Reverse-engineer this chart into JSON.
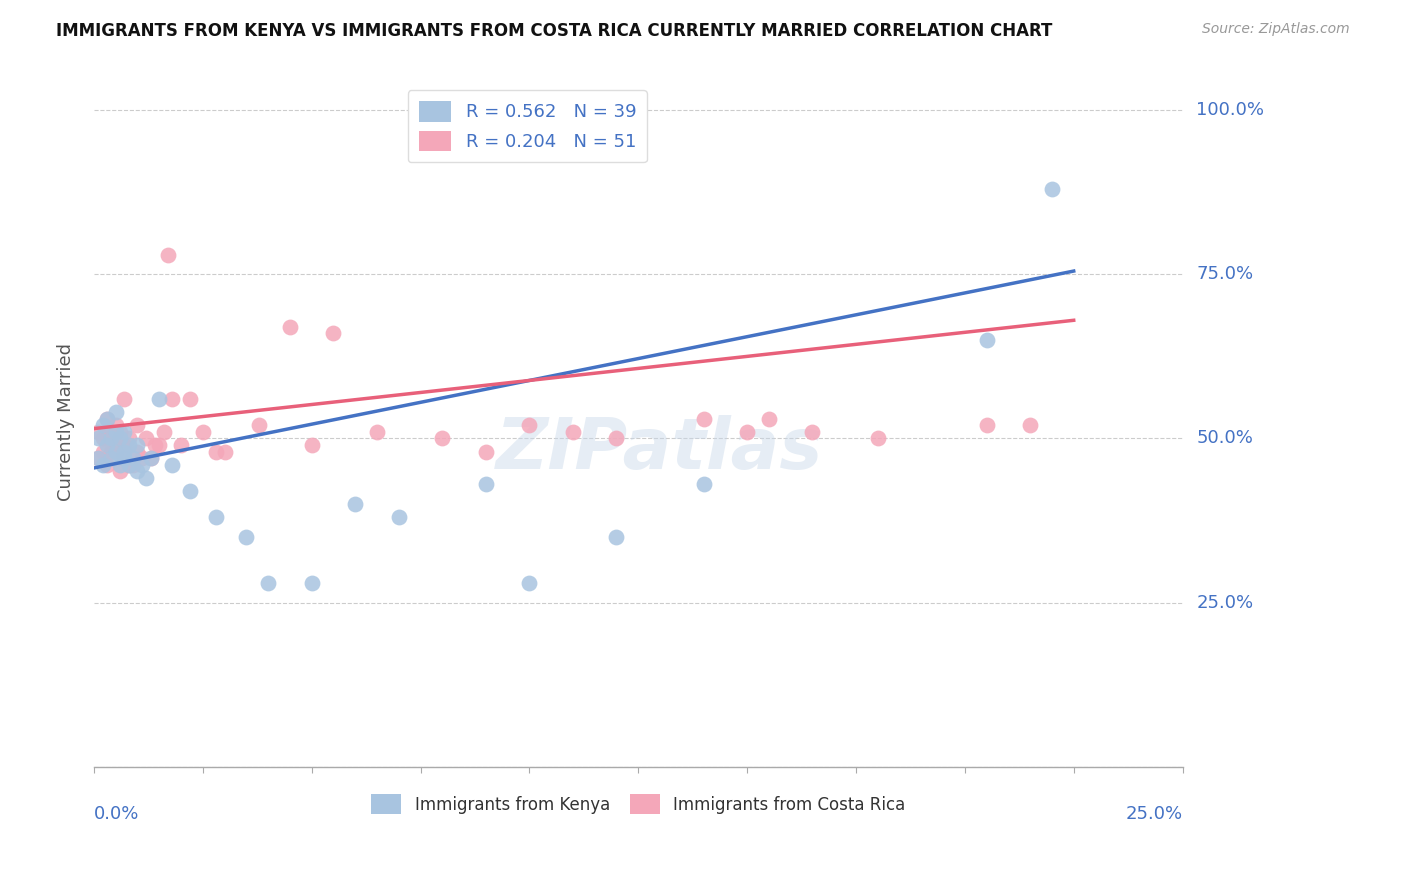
{
  "title": "IMMIGRANTS FROM KENYA VS IMMIGRANTS FROM COSTA RICA CURRENTLY MARRIED CORRELATION CHART",
  "source": "Source: ZipAtlas.com",
  "ylabel": "Currently Married",
  "xmin": 0.0,
  "xmax": 0.25,
  "ymin": 0.0,
  "ymax": 1.05,
  "color_kenya": "#a8c4e0",
  "color_costarica": "#f4a7b9",
  "color_kenya_line": "#4472c4",
  "color_costarica_line": "#e8607a",
  "color_axis": "#4472c4",
  "watermark": "ZIPatlas",
  "background_color": "#ffffff",
  "kenya_x": [
    0.001,
    0.001,
    0.002,
    0.002,
    0.003,
    0.003,
    0.004,
    0.004,
    0.005,
    0.005,
    0.005,
    0.006,
    0.006,
    0.007,
    0.007,
    0.007,
    0.008,
    0.008,
    0.009,
    0.01,
    0.01,
    0.011,
    0.012,
    0.013,
    0.015,
    0.018,
    0.022,
    0.028,
    0.035,
    0.04,
    0.05,
    0.06,
    0.07,
    0.09,
    0.1,
    0.12,
    0.14,
    0.205,
    0.22
  ],
  "kenya_y": [
    0.47,
    0.5,
    0.46,
    0.52,
    0.49,
    0.53,
    0.5,
    0.47,
    0.48,
    0.51,
    0.54,
    0.46,
    0.5,
    0.47,
    0.51,
    0.48,
    0.46,
    0.49,
    0.47,
    0.45,
    0.49,
    0.46,
    0.44,
    0.47,
    0.56,
    0.46,
    0.42,
    0.38,
    0.35,
    0.28,
    0.28,
    0.4,
    0.38,
    0.43,
    0.28,
    0.35,
    0.43,
    0.65,
    0.88
  ],
  "costarica_x": [
    0.001,
    0.001,
    0.002,
    0.002,
    0.003,
    0.003,
    0.003,
    0.004,
    0.004,
    0.005,
    0.005,
    0.006,
    0.006,
    0.007,
    0.007,
    0.007,
    0.008,
    0.008,
    0.009,
    0.01,
    0.01,
    0.011,
    0.012,
    0.013,
    0.014,
    0.015,
    0.016,
    0.017,
    0.018,
    0.02,
    0.022,
    0.025,
    0.028,
    0.03,
    0.038,
    0.045,
    0.05,
    0.055,
    0.065,
    0.08,
    0.09,
    0.1,
    0.11,
    0.12,
    0.14,
    0.15,
    0.155,
    0.165,
    0.18,
    0.205,
    0.215
  ],
  "costarica_y": [
    0.47,
    0.51,
    0.5,
    0.48,
    0.46,
    0.5,
    0.53,
    0.48,
    0.51,
    0.49,
    0.52,
    0.45,
    0.51,
    0.47,
    0.49,
    0.56,
    0.46,
    0.5,
    0.46,
    0.48,
    0.52,
    0.47,
    0.5,
    0.47,
    0.49,
    0.49,
    0.51,
    0.78,
    0.56,
    0.49,
    0.56,
    0.51,
    0.48,
    0.48,
    0.52,
    0.67,
    0.49,
    0.66,
    0.51,
    0.5,
    0.48,
    0.52,
    0.51,
    0.5,
    0.53,
    0.51,
    0.53,
    0.51,
    0.5,
    0.52,
    0.52
  ],
  "kenya_tline_x": [
    0.0,
    0.225
  ],
  "kenya_tline_y": [
    0.455,
    0.755
  ],
  "cr_tline_x": [
    0.0,
    0.225
  ],
  "cr_tline_y": [
    0.515,
    0.68
  ]
}
